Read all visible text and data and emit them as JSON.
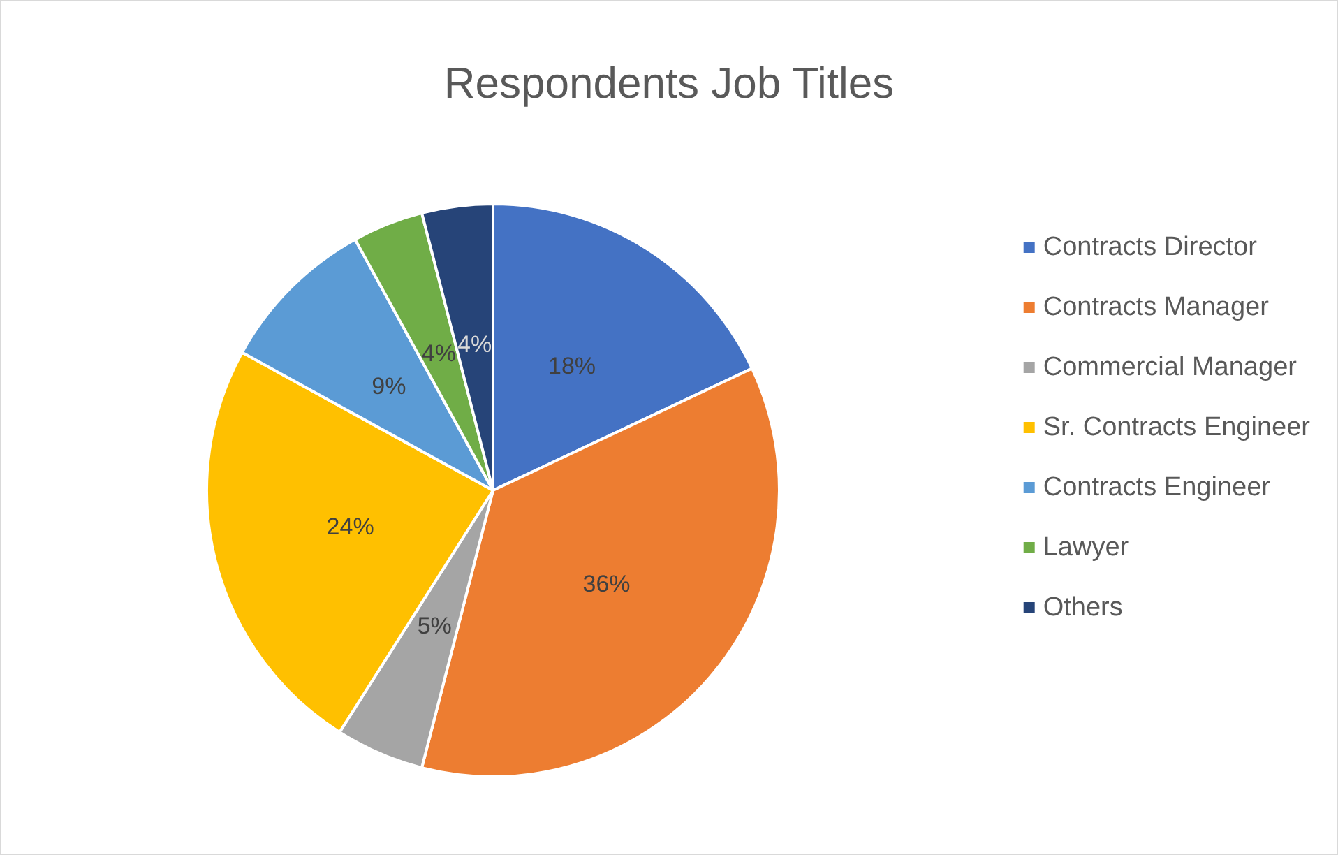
{
  "chart_data": {
    "type": "pie",
    "title": "Respondents Job Titles",
    "categories": [
      "Contracts Director",
      "Contracts Manager",
      "Commercial Manager",
      "Sr. Contracts Engineer",
      "Contracts Engineer",
      "Lawyer",
      "Others"
    ],
    "values": [
      18,
      36,
      5,
      24,
      9,
      4,
      4
    ],
    "colors": [
      "#4472c4",
      "#ed7d31",
      "#a5a5a5",
      "#ffc000",
      "#5b9bd5",
      "#70ad47",
      "#264478"
    ],
    "value_labels": [
      "18%",
      "36%",
      "5%",
      "24%",
      "9%",
      "4%",
      "4%"
    ],
    "legend": "right"
  }
}
